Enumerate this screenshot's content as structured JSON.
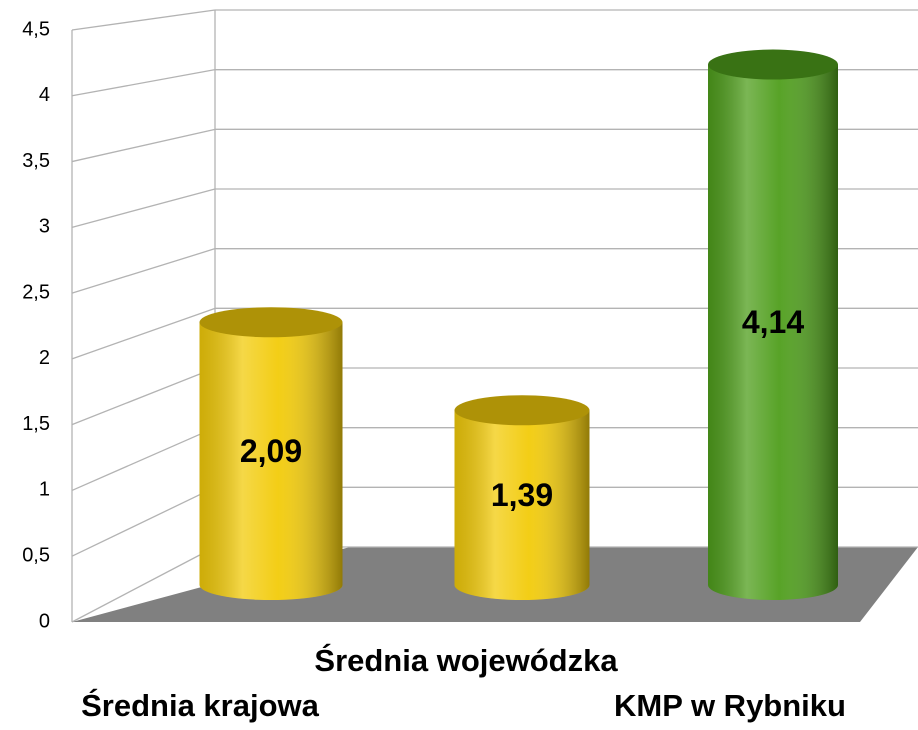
{
  "chart_data": {
    "type": "bar3d-cylinder",
    "categories": [
      "Średnia krajowa",
      "Średnia wojewódzka",
      "KMP w Rybniku"
    ],
    "values": [
      2.09,
      1.39,
      4.14
    ],
    "value_labels": [
      "2,09",
      "1,39",
      "4,14"
    ],
    "colors": [
      "#f2cb0a",
      "#f2cb0a",
      "#4f9e1c"
    ],
    "ylim": [
      0,
      4.5
    ],
    "yticks": [
      0,
      {
        "value": 0.5,
        "label": "0,5"
      },
      1,
      {
        "value": 1.5,
        "label": "1,5"
      },
      2,
      {
        "value": 2.5,
        "label": "2,5"
      },
      3,
      {
        "value": 3.5,
        "label": "3,5"
      },
      4,
      {
        "value": 4.5,
        "label": "4,5"
      }
    ],
    "grid": true
  }
}
